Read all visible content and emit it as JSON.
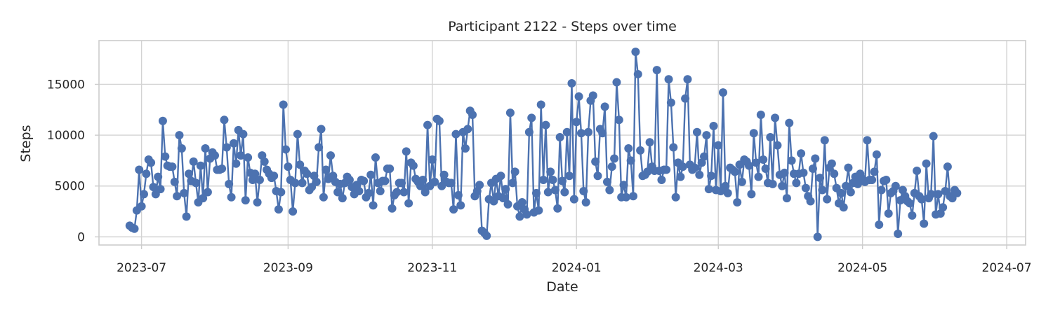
{
  "chart_data": {
    "type": "line",
    "title": "Participant 2122 - Steps over time",
    "xlabel": "Date",
    "ylabel": "Steps",
    "x_range": [
      "2023-06-13",
      "2024-07-09"
    ],
    "ylim": [
      -800,
      19300
    ],
    "x_ticks": [
      {
        "date": "2023-07-01",
        "label": "2023-07"
      },
      {
        "date": "2023-09-01",
        "label": "2023-09"
      },
      {
        "date": "2023-11-01",
        "label": "2023-11"
      },
      {
        "date": "2024-01-01",
        "label": "2024-01"
      },
      {
        "date": "2024-03-01",
        "label": "2024-03"
      },
      {
        "date": "2024-05-01",
        "label": "2024-05"
      },
      {
        "date": "2024-07-01",
        "label": "2024-07"
      }
    ],
    "y_ticks": [
      {
        "value": 0,
        "label": "0"
      },
      {
        "value": 5000,
        "label": "5000"
      },
      {
        "value": 10000,
        "label": "10000"
      },
      {
        "value": 15000,
        "label": "15000"
      }
    ],
    "grid": true,
    "marker": "circle",
    "colors": {
      "series": "#4c72b0",
      "grid": "#d3d3d3",
      "frame": "#cccccc",
      "text": "#262626"
    },
    "series": [
      {
        "start_date": "2023-06-26",
        "step_days": 1,
        "values": [
          1100,
          900,
          800,
          2600,
          6600,
          3000,
          4200,
          6200,
          7600,
          7300,
          4900,
          4200,
          5900,
          4700,
          11400,
          7900,
          7000,
          6900,
          6900,
          5400,
          4000,
          10000,
          8700,
          4300,
          2000,
          6200,
          5500,
          7400,
          5300,
          3400,
          7000,
          3800,
          8700,
          4400,
          7700,
          8300,
          8000,
          6600,
          6600,
          6700,
          11500,
          8800,
          5200,
          3900,
          9200,
          7200,
          10500,
          8000,
          10100,
          3600,
          7800,
          6300,
          5600,
          6200,
          3400,
          5600,
          8000,
          7400,
          6600,
          6200,
          5800,
          6000,
          4500,
          2700,
          4400,
          13000,
          8600,
          6900,
          5600,
          2500,
          5300,
          10100,
          7100,
          5300,
          6500,
          6200,
          4600,
          4900,
          6000,
          5400,
          8800,
          10600,
          3900,
          6600,
          5700,
          8000,
          6000,
          5400,
          4400,
          5200,
          3800,
          5300,
          5900,
          5600,
          4900,
          4200,
          5100,
          4500,
          5600,
          5500,
          3900,
          4300,
          6100,
          3100,
          7800,
          5300,
          4500,
          5500,
          5500,
          6700,
          6700,
          2800,
          4100,
          4400,
          5300,
          5300,
          4400,
          8400,
          3300,
          7300,
          7000,
          5700,
          5400,
          5000,
          5600,
          4400,
          11000,
          5000,
          7600,
          5400,
          11600,
          11400,
          5000,
          6100,
          5400,
          5300,
          5300,
          2700,
          10100,
          4100,
          3100,
          10300,
          8700,
          10600,
          12400,
          12000,
          4000,
          4500,
          5100,
          600,
          400,
          100,
          3700,
          5300,
          3500,
          5700,
          4000,
          6000,
          3800,
          4700,
          3200,
          12200,
          5300,
          6400,
          3000,
          2000,
          3400,
          2700,
          2200,
          10300,
          11700,
          2400,
          4300,
          2600,
          13000,
          5600,
          11000,
          4400,
          6400,
          5600,
          4600,
          2800,
          9800,
          5500,
          4400,
          10300,
          6000,
          15100,
          3700,
          11300,
          13800,
          10200,
          4500,
          3400,
          10300,
          13400,
          13900,
          7400,
          6000,
          10600,
          10200,
          12800,
          5400,
          4600,
          6900,
          7700,
          15200,
          11500,
          3900,
          5100,
          3900,
          8700,
          7500,
          4000,
          18200,
          16000,
          8500,
          6000,
          6100,
          6400,
          9300,
          6900,
          6500,
          16400,
          6500,
          5600,
          6600,
          6600,
          15500,
          13200,
          8800,
          3900,
          7300,
          5900,
          6900,
          13600,
          15500,
          7100,
          6600,
          6800,
          10300,
          6100,
          7300,
          7900,
          10000,
          4700,
          6000,
          10900,
          4600,
          9000,
          4500,
          14200,
          5000,
          4300,
          6800,
          6600,
          6400,
          3400,
          7100,
          5400,
          7600,
          7400,
          7000,
          4200,
          10200,
          7300,
          5900,
          12000,
          7600,
          6700,
          5300,
          9800,
          5200,
          11700,
          9000,
          6100,
          5000,
          6300,
          3800,
          11200,
          7500,
          6200,
          5300,
          6200,
          8200,
          6300,
          4800,
          4000,
          3500,
          6700,
          7700,
          0,
          5800,
          4600,
          9500,
          3700,
          6800,
          7200,
          6200,
          4800,
          3300,
          4300,
          2900,
          5000,
          6800,
          4400,
          5300,
          5900,
          5200,
          6200,
          5700,
          5400,
          9500,
          5600,
          5600,
          6400,
          8100,
          1200,
          4600,
          5500,
          5600,
          2300,
          4300,
          4500,
          5000,
          300,
          3600,
          4600,
          4000,
          3500,
          3300,
          2100,
          4300,
          6500,
          4000,
          3700,
          1300,
          7200,
          3800,
          4200,
          9900,
          2200,
          4200,
          2300,
          2900,
          4500,
          6900,
          4000,
          3800,
          4600,
          4300
        ]
      }
    ]
  }
}
